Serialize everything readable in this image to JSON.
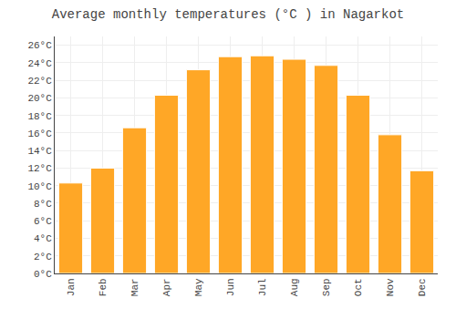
{
  "chart_data": {
    "type": "bar",
    "title": "Average monthly temperatures (°C ) in Nagarkot",
    "categories": [
      "Jan",
      "Feb",
      "Mar",
      "Apr",
      "May",
      "Jun",
      "Jul",
      "Aug",
      "Sep",
      "Oct",
      "Nov",
      "Dec"
    ],
    "values": [
      10.3,
      12.0,
      16.6,
      20.3,
      23.2,
      24.7,
      24.8,
      24.4,
      23.7,
      20.3,
      15.8,
      11.7
    ],
    "color": "#FFA726",
    "ylim": [
      0,
      27
    ],
    "yticks": [
      {
        "value": 0,
        "label": "0°C"
      },
      {
        "value": 2,
        "label": "2°C"
      },
      {
        "value": 4,
        "label": "4°C"
      },
      {
        "value": 6,
        "label": "6°C"
      },
      {
        "value": 8,
        "label": "8°C"
      },
      {
        "value": 10,
        "label": "10°C"
      },
      {
        "value": 12,
        "label": "12°C"
      },
      {
        "value": 14,
        "label": "14°C"
      },
      {
        "value": 16,
        "label": "16°C"
      },
      {
        "value": 18,
        "label": "18°C"
      },
      {
        "value": 20,
        "label": "20°C"
      },
      {
        "value": 22,
        "label": "22°C"
      },
      {
        "value": 24,
        "label": "24°C"
      },
      {
        "value": 26,
        "label": "26°C"
      }
    ],
    "grid": true
  }
}
